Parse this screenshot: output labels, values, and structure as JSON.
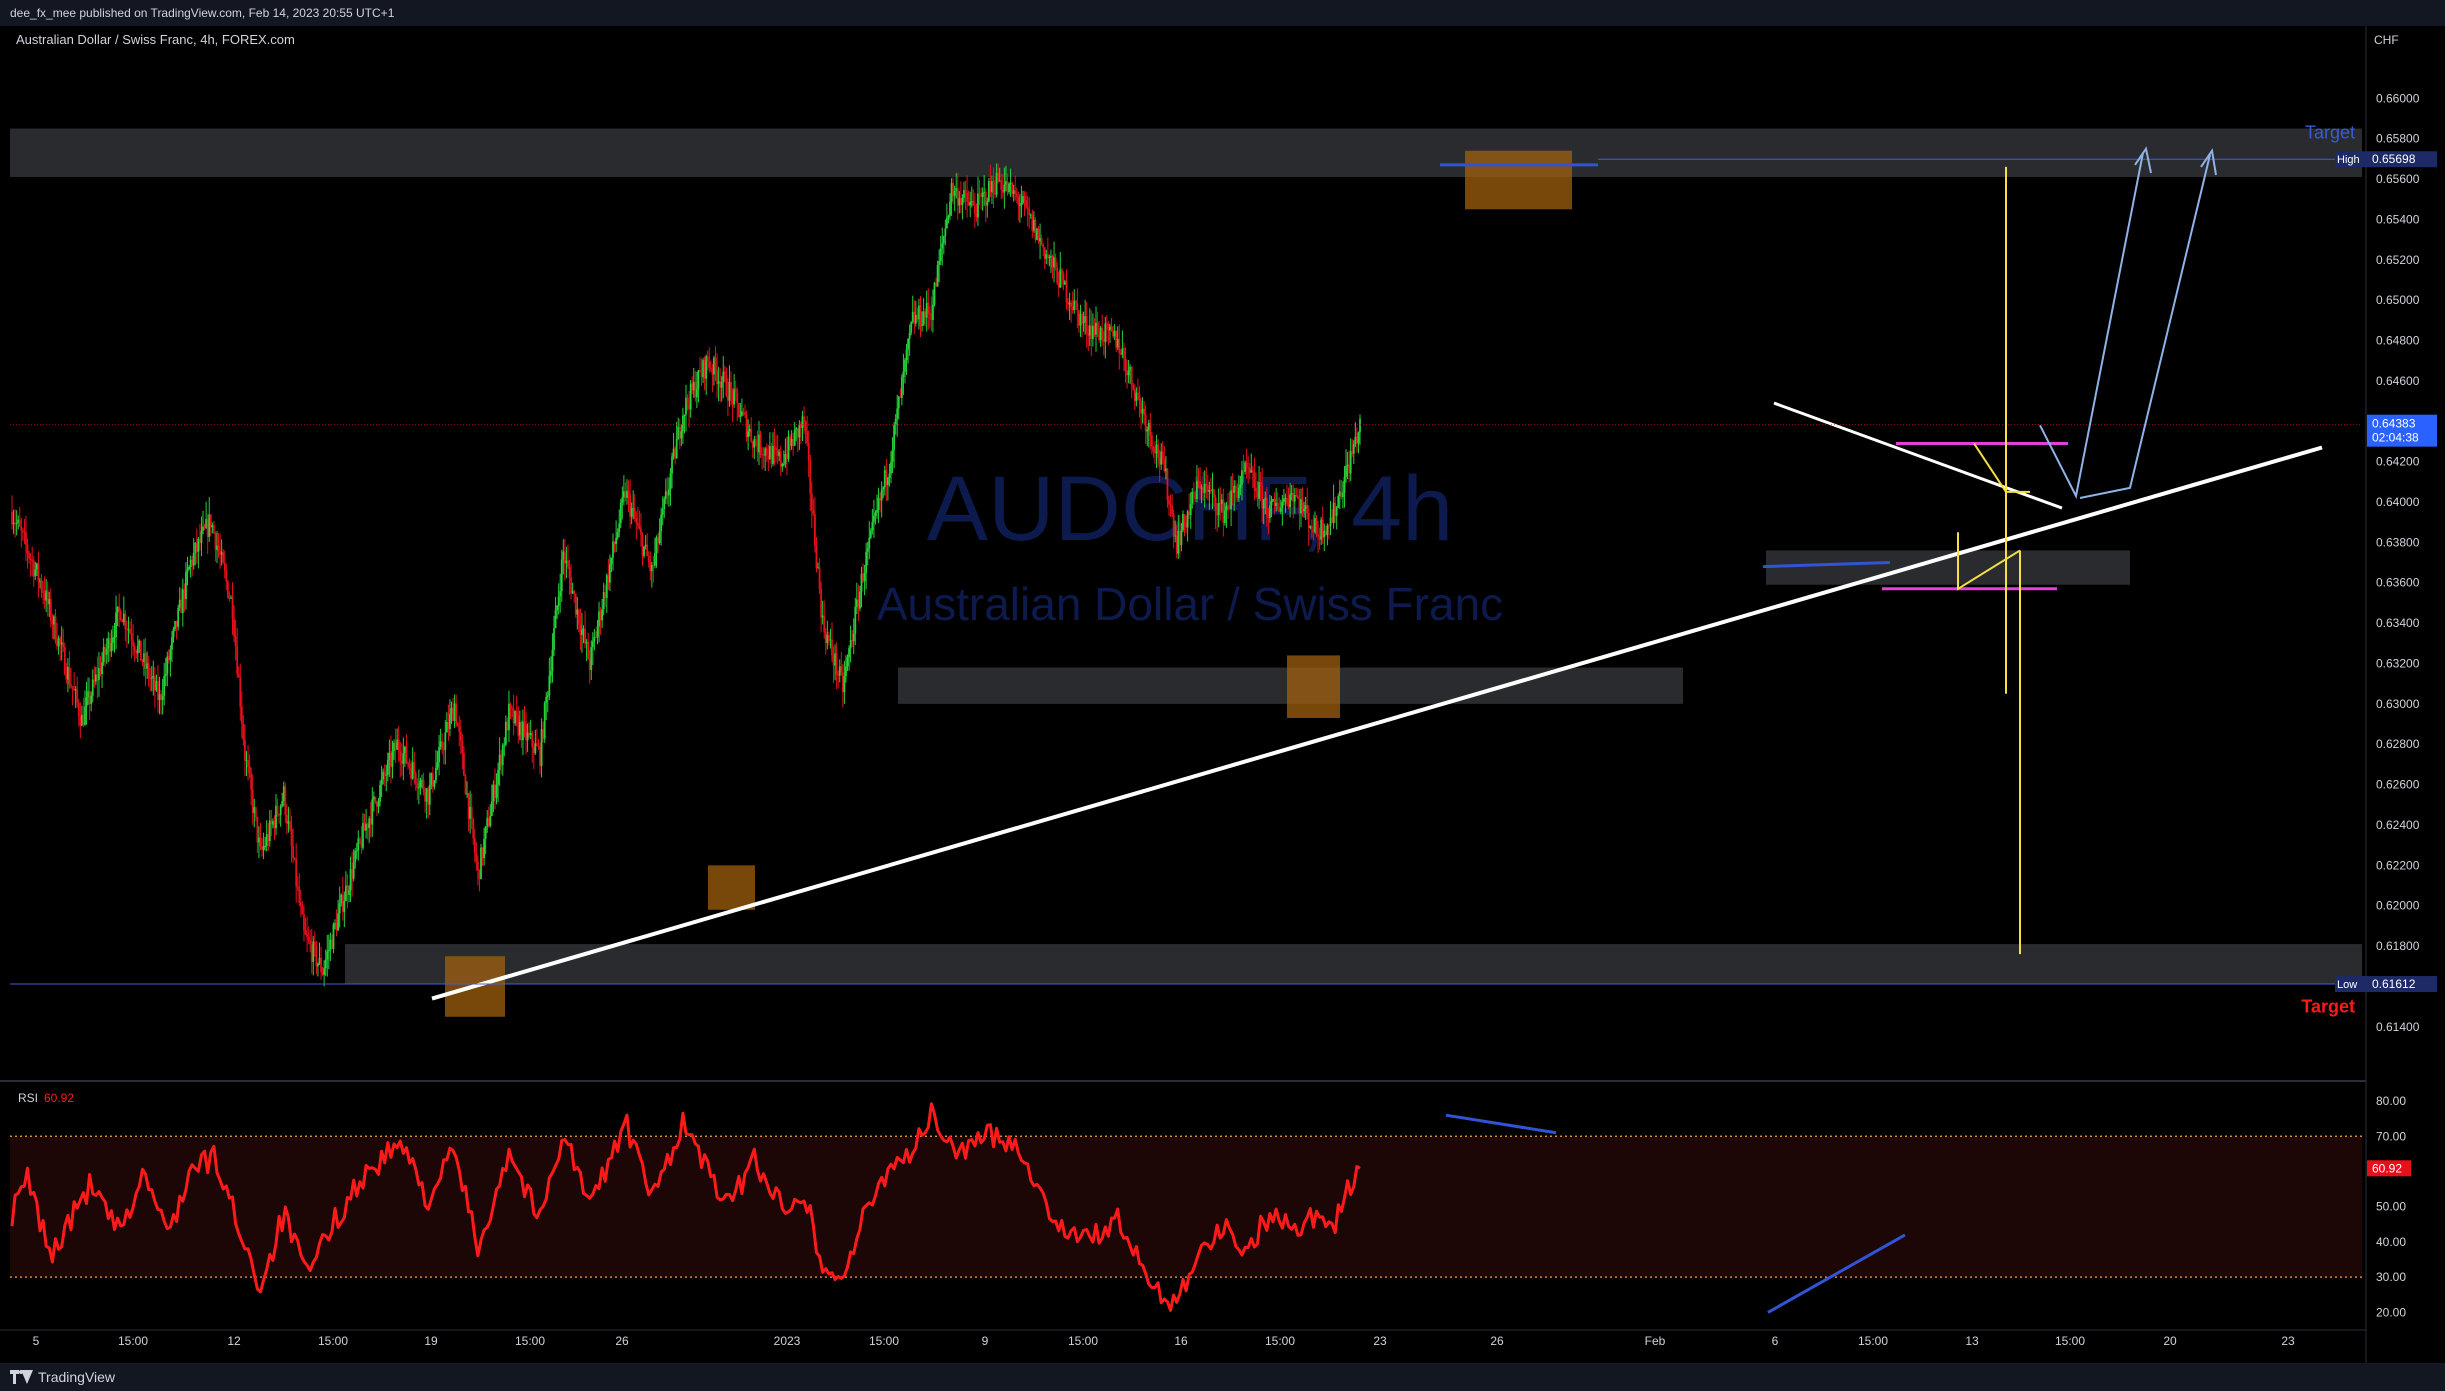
{
  "header": {
    "publish_line": "dee_fx_mee published on TradingView.com, Feb 14, 2023 20:55 UTC+1",
    "symbol_line": "Australian Dollar / Swiss Franc, 4h, FOREX.com"
  },
  "watermark": {
    "ticker": "AUDCHF, 4h",
    "name": "Australian Dollar / Swiss Franc"
  },
  "footer": {
    "brand": "TradingView"
  },
  "colors": {
    "up": "#26d13a",
    "down": "#e5101a",
    "zone": "#2f3033",
    "box": "#a0600f",
    "trendline": "#ffffff",
    "rsi": "#ff1a1a",
    "arrow": "#8fb3e6",
    "projection": "#f5e044",
    "pink": "#e040d8",
    "blue": "#3154d6"
  },
  "chart_data": {
    "type": "candlestick",
    "price_axis": {
      "unit": "CHF",
      "ticks": [
        "0.66000",
        "0.65800",
        "0.65600",
        "0.65400",
        "0.65200",
        "0.65000",
        "0.64800",
        "0.64600",
        "0.64400",
        "0.64200",
        "0.64000",
        "0.63800",
        "0.63600",
        "0.63400",
        "0.63200",
        "0.63000",
        "0.62800",
        "0.62600",
        "0.62400",
        "0.62200",
        "0.62000",
        "0.61800",
        "0.61600",
        "0.61400"
      ],
      "range": [
        0.6132,
        0.6614
      ]
    },
    "time_axis": {
      "ticks": [
        "5",
        "15:00",
        "12",
        "15:00",
        "19",
        "15:00",
        "26",
        "2023",
        "15:00",
        "9",
        "15:00",
        "16",
        "15:00",
        "23",
        "26",
        "Feb",
        "6",
        "15:00",
        "13",
        "15:00",
        "20",
        "23"
      ]
    },
    "labels": {
      "high_label": "High",
      "high_value": "0.65698",
      "low_label": "Low",
      "low_value": "0.61612",
      "current_price": "0.64383",
      "countdown": "02:04:38",
      "target_top": "Target",
      "target_bottom": "Target"
    },
    "anchors": [
      {
        "t": 0,
        "p": 0.6395
      },
      {
        "t": 20,
        "p": 0.6357
      },
      {
        "t": 45,
        "p": 0.6292
      },
      {
        "t": 70,
        "p": 0.6347
      },
      {
        "t": 95,
        "p": 0.6302
      },
      {
        "t": 115,
        "p": 0.637
      },
      {
        "t": 128,
        "p": 0.6391
      },
      {
        "t": 142,
        "p": 0.6348
      },
      {
        "t": 150,
        "p": 0.6275
      },
      {
        "t": 160,
        "p": 0.6225
      },
      {
        "t": 175,
        "p": 0.6255
      },
      {
        "t": 188,
        "p": 0.6185
      },
      {
        "t": 200,
        "p": 0.6168
      },
      {
        "t": 212,
        "p": 0.62
      },
      {
        "t": 228,
        "p": 0.624
      },
      {
        "t": 248,
        "p": 0.628
      },
      {
        "t": 268,
        "p": 0.6255
      },
      {
        "t": 285,
        "p": 0.63
      },
      {
        "t": 300,
        "p": 0.6215
      },
      {
        "t": 320,
        "p": 0.6295
      },
      {
        "t": 340,
        "p": 0.6275
      },
      {
        "t": 355,
        "p": 0.6375
      },
      {
        "t": 372,
        "p": 0.632
      },
      {
        "t": 395,
        "p": 0.6405
      },
      {
        "t": 412,
        "p": 0.6365
      },
      {
        "t": 432,
        "p": 0.6445
      },
      {
        "t": 448,
        "p": 0.647
      },
      {
        "t": 462,
        "p": 0.6455
      },
      {
        "t": 478,
        "p": 0.643
      },
      {
        "t": 495,
        "p": 0.642
      },
      {
        "t": 510,
        "p": 0.644
      },
      {
        "t": 522,
        "p": 0.634
      },
      {
        "t": 535,
        "p": 0.6308
      },
      {
        "t": 548,
        "p": 0.6365
      },
      {
        "t": 565,
        "p": 0.642
      },
      {
        "t": 580,
        "p": 0.649
      },
      {
        "t": 592,
        "p": 0.6495
      },
      {
        "t": 605,
        "p": 0.6555
      },
      {
        "t": 620,
        "p": 0.6545
      },
      {
        "t": 635,
        "p": 0.656
      },
      {
        "t": 650,
        "p": 0.6548
      },
      {
        "t": 668,
        "p": 0.652
      },
      {
        "t": 690,
        "p": 0.6488
      },
      {
        "t": 712,
        "p": 0.648
      },
      {
        "t": 728,
        "p": 0.6445
      },
      {
        "t": 742,
        "p": 0.6415
      },
      {
        "t": 750,
        "p": 0.638
      },
      {
        "t": 765,
        "p": 0.641
      },
      {
        "t": 780,
        "p": 0.6395
      },
      {
        "t": 795,
        "p": 0.6415
      },
      {
        "t": 810,
        "p": 0.6395
      },
      {
        "t": 825,
        "p": 0.6405
      },
      {
        "t": 840,
        "p": 0.6385
      },
      {
        "t": 850,
        "p": 0.6392
      },
      {
        "t": 862,
        "p": 0.6422
      },
      {
        "t": 868,
        "p": 0.6438
      }
    ],
    "last_candle_index": 868,
    "rsi": {
      "label": "RSI",
      "value": "60.92",
      "axis_ticks": [
        "80.00",
        "70.00",
        "60.00",
        "50.00",
        "40.00",
        "30.00",
        "20.00"
      ],
      "range": [
        15,
        84
      ],
      "overbought": 70,
      "oversold": 30,
      "anchors": [
        {
          "t": 0,
          "v": 48
        },
        {
          "t": 10,
          "v": 58
        },
        {
          "t": 25,
          "v": 36
        },
        {
          "t": 50,
          "v": 56
        },
        {
          "t": 70,
          "v": 42
        },
        {
          "t": 85,
          "v": 60
        },
        {
          "t": 100,
          "v": 42
        },
        {
          "t": 115,
          "v": 60
        },
        {
          "t": 130,
          "v": 64
        },
        {
          "t": 145,
          "v": 46
        },
        {
          "t": 160,
          "v": 27
        },
        {
          "t": 175,
          "v": 48
        },
        {
          "t": 190,
          "v": 30
        },
        {
          "t": 205,
          "v": 44
        },
        {
          "t": 225,
          "v": 58
        },
        {
          "t": 250,
          "v": 68
        },
        {
          "t": 268,
          "v": 52
        },
        {
          "t": 285,
          "v": 66
        },
        {
          "t": 300,
          "v": 38
        },
        {
          "t": 320,
          "v": 66
        },
        {
          "t": 340,
          "v": 46
        },
        {
          "t": 355,
          "v": 72
        },
        {
          "t": 372,
          "v": 50
        },
        {
          "t": 395,
          "v": 74
        },
        {
          "t": 412,
          "v": 52
        },
        {
          "t": 432,
          "v": 74
        },
        {
          "t": 448,
          "v": 60
        },
        {
          "t": 462,
          "v": 50
        },
        {
          "t": 478,
          "v": 64
        },
        {
          "t": 495,
          "v": 50
        },
        {
          "t": 510,
          "v": 55
        },
        {
          "t": 522,
          "v": 32
        },
        {
          "t": 535,
          "v": 30
        },
        {
          "t": 548,
          "v": 46
        },
        {
          "t": 565,
          "v": 62
        },
        {
          "t": 580,
          "v": 66
        },
        {
          "t": 592,
          "v": 76
        },
        {
          "t": 605,
          "v": 66
        },
        {
          "t": 620,
          "v": 68
        },
        {
          "t": 635,
          "v": 71
        },
        {
          "t": 650,
          "v": 66
        },
        {
          "t": 668,
          "v": 48
        },
        {
          "t": 690,
          "v": 40
        },
        {
          "t": 712,
          "v": 46
        },
        {
          "t": 728,
          "v": 32
        },
        {
          "t": 742,
          "v": 24
        },
        {
          "t": 750,
          "v": 24
        },
        {
          "t": 765,
          "v": 38
        },
        {
          "t": 780,
          "v": 44
        },
        {
          "t": 795,
          "v": 38
        },
        {
          "t": 810,
          "v": 48
        },
        {
          "t": 825,
          "v": 44
        },
        {
          "t": 840,
          "v": 48
        },
        {
          "t": 850,
          "v": 44
        },
        {
          "t": 862,
          "v": 56
        },
        {
          "t": 868,
          "v": 60.92
        }
      ]
    }
  }
}
